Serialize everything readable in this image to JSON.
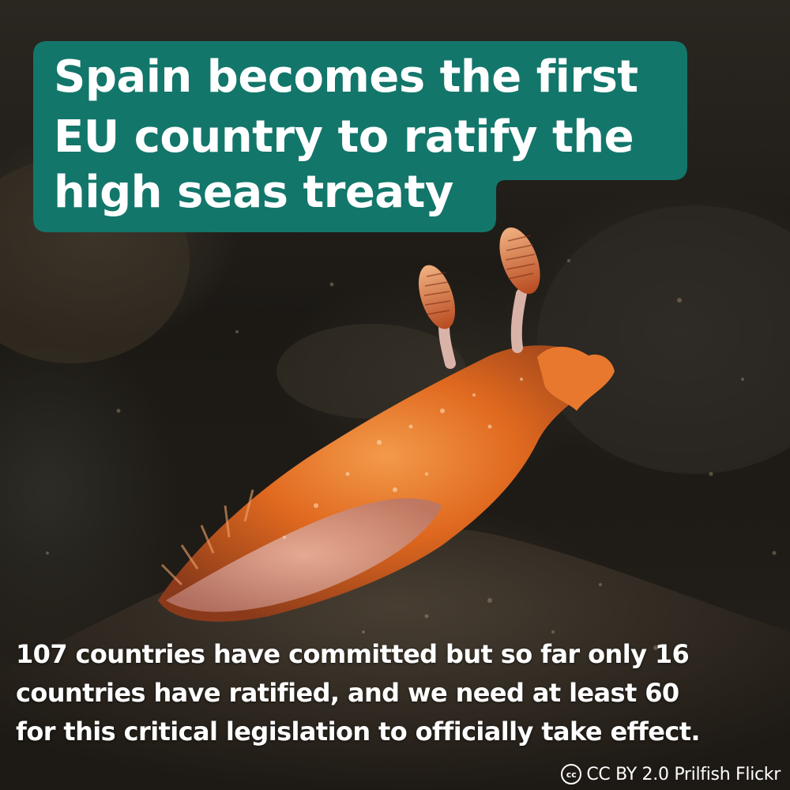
{
  "headline": {
    "lines": [
      "Spain becomes the first",
      "EU country to ratify the",
      "high seas treaty"
    ],
    "background_color": "#13766a"
  },
  "body_text": {
    "lines": [
      "107 countries have committed but so far only 16",
      "countries have ratified, and we need at least 60",
      "for this critical legislation to officially take effect."
    ]
  },
  "credit": {
    "icon": "creative-commons-icon",
    "icon_glyph": "cc",
    "text": "CC BY 2.0 Prilfish Flickr"
  },
  "photo": {
    "subject_icon": "nudibranch-sea-slug-illustration"
  }
}
